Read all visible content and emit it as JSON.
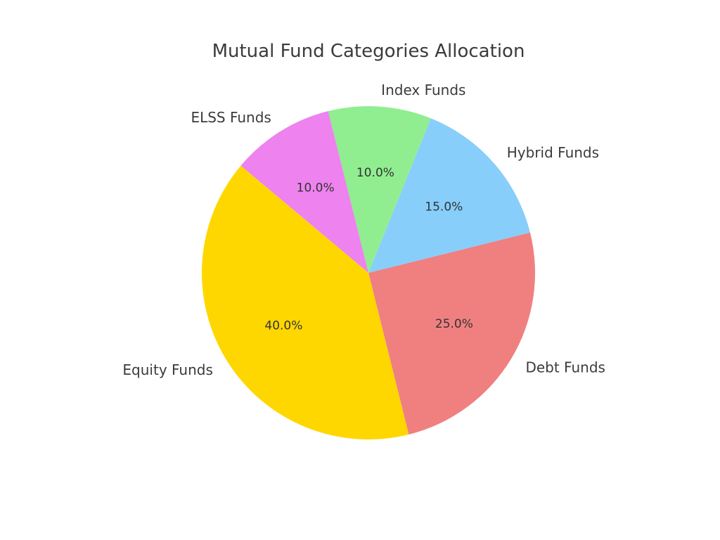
{
  "chart_data": {
    "type": "pie",
    "title": "Mutual Fund Categories Allocation",
    "categories": [
      "Equity Funds",
      "Debt Funds",
      "Hybrid Funds",
      "Index Funds",
      "ELSS Funds"
    ],
    "values": [
      40,
      25,
      15,
      10,
      10
    ],
    "percent_labels": [
      "40.0%",
      "25.0%",
      "15.0%",
      "10.0%",
      "10.0%"
    ],
    "colors": [
      "#FFD700",
      "#F08080",
      "#87CEFA",
      "#90EE90",
      "#EE82EE"
    ],
    "start_angle_deg": 140,
    "direction": "counterclockwise",
    "legend": "none"
  }
}
